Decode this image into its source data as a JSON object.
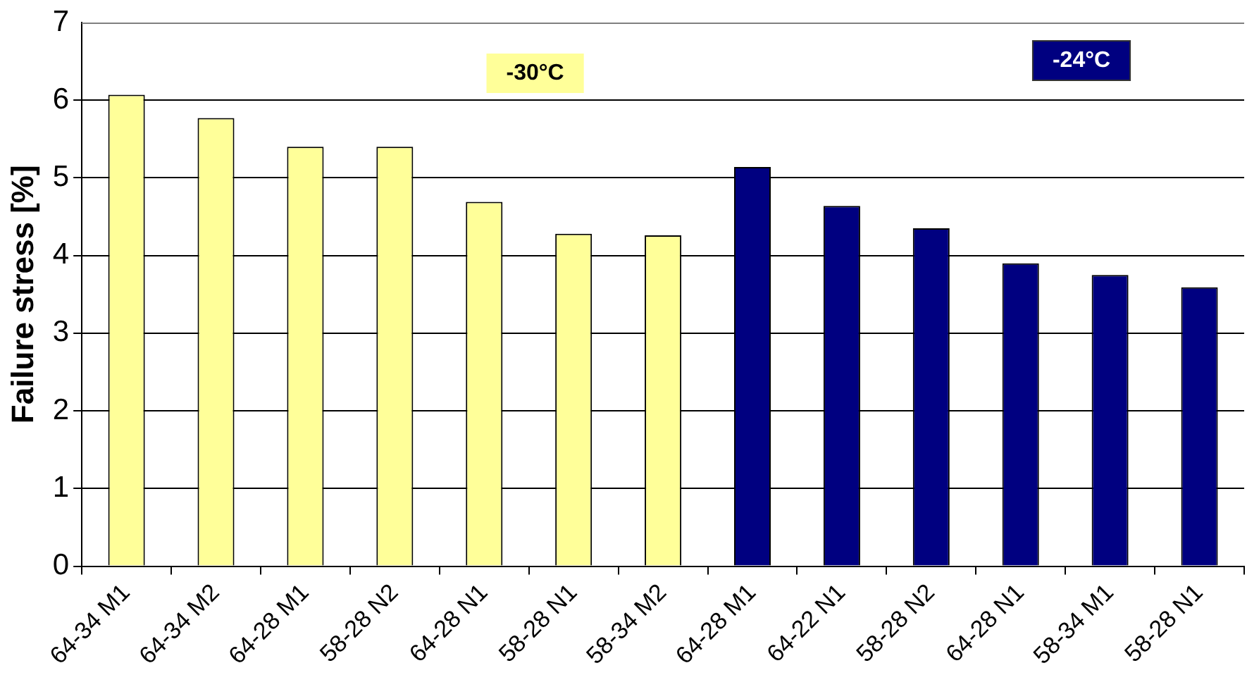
{
  "chart_data": {
    "type": "bar",
    "ylabel": "Failure stress [%]",
    "categories": [
      "64-34 M1",
      "64-34 M2",
      "64-28 M1",
      "58-28 N2",
      "64-28 N1",
      "58-28 N1",
      "58-34 M2",
      "64-28 M1",
      "64-22 N1",
      "58-28 N2",
      "64-28 N1",
      "58-34 M1",
      "58-28 N1"
    ],
    "values": [
      6.07,
      5.77,
      5.4,
      5.4,
      4.69,
      4.28,
      4.26,
      5.14,
      4.64,
      4.35,
      3.9,
      3.75,
      3.59
    ],
    "colors": [
      "#ffff99",
      "#ffff99",
      "#ffff99",
      "#ffff99",
      "#ffff99",
      "#ffff99",
      "#ffff99",
      "#000080",
      "#000080",
      "#000080",
      "#000080",
      "#000080",
      "#000080"
    ],
    "ylim": [
      0,
      7
    ],
    "yticks": [
      0,
      1,
      2,
      3,
      4,
      5,
      6,
      7
    ],
    "grid": "y",
    "annotations": [
      "-30°C",
      "-24°C"
    ]
  }
}
